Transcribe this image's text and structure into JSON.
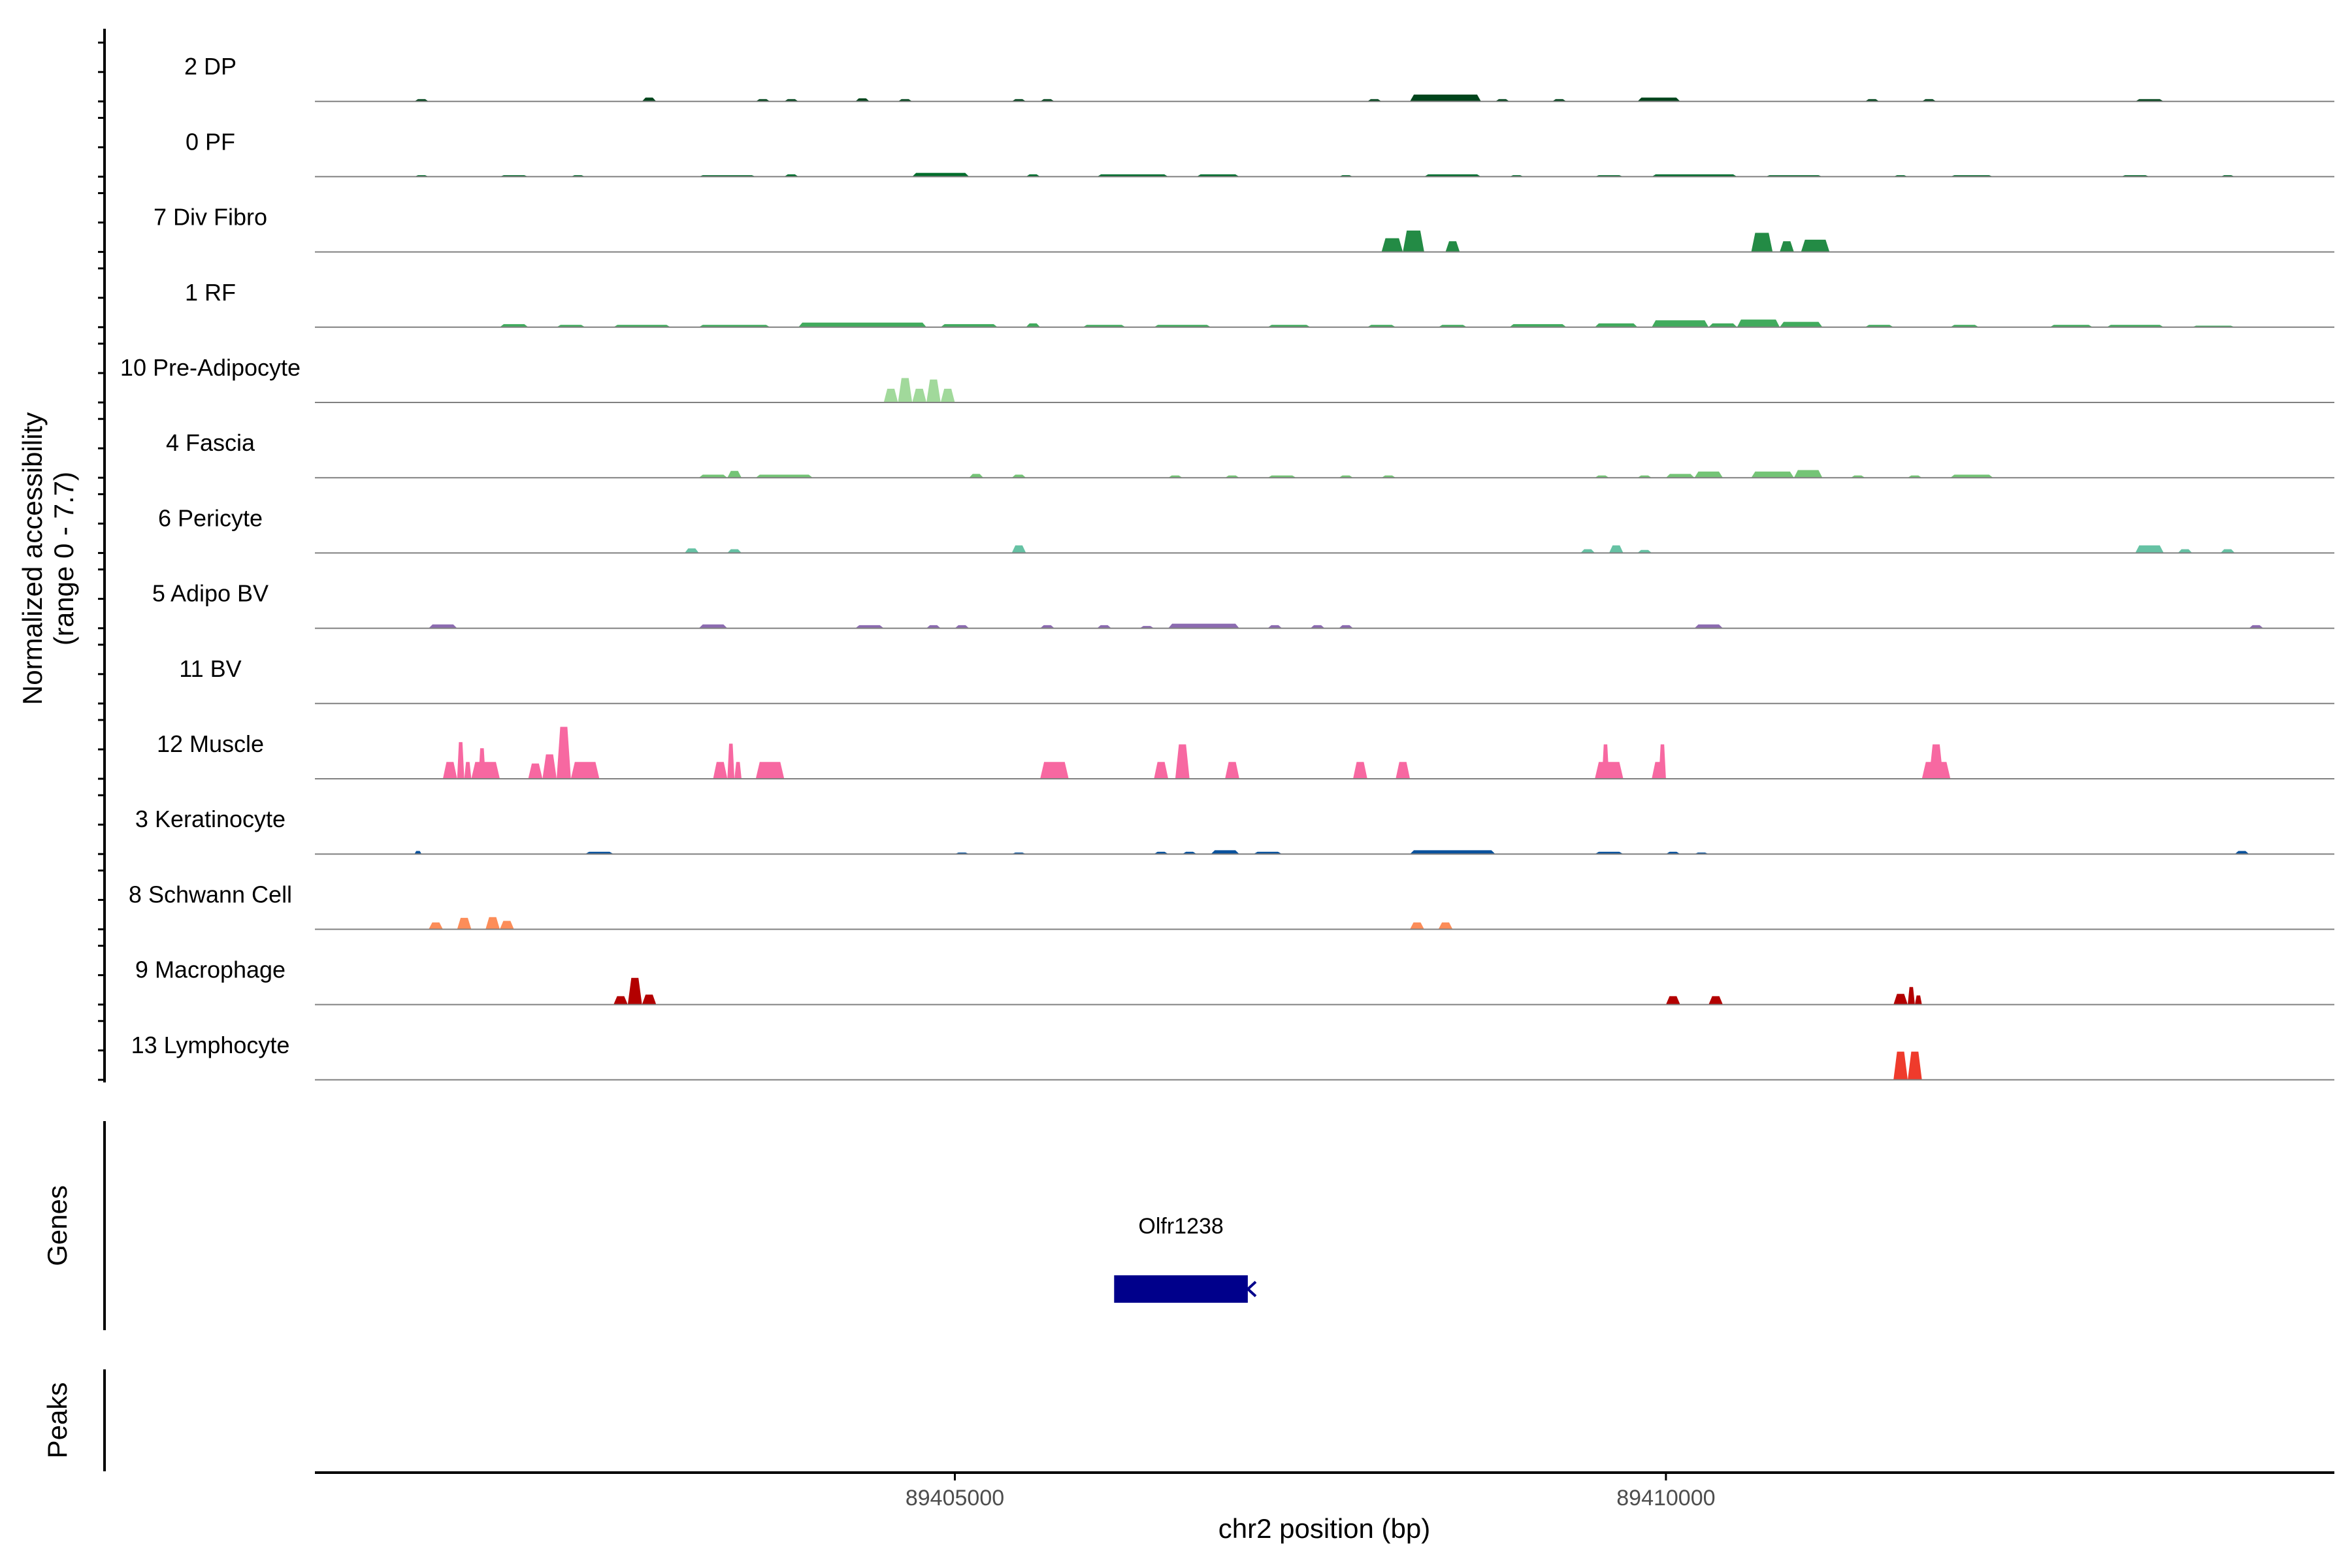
{
  "chart_data": {
    "type": "area",
    "title": "",
    "ylabel_line1": "Normalized accessibility",
    "ylabel_line2": "(range 0 - 7.7)",
    "y_range": [
      0,
      7.7
    ],
    "xlabel": "chr2 position (bp)",
    "xlim": [
      89400500,
      89414700
    ],
    "x_ticks": [
      {
        "value": 89405000,
        "label": "89405000"
      },
      {
        "value": 89410000,
        "label": "89410000"
      }
    ],
    "panels": {
      "genes_label": "Genes",
      "peaks_label": "Peaks"
    },
    "gene": {
      "name": "Olfr1238",
      "start": 89406120,
      "end": 89407060,
      "strand": "-",
      "color": "#00008b"
    },
    "tracks": [
      {
        "name": "2 DP",
        "color": "#00441b",
        "regions": [
          [
            89401200,
            89401300,
            0.3
          ],
          [
            89402800,
            89402900,
            0.5
          ],
          [
            89403600,
            89403700,
            0.3
          ],
          [
            89403800,
            89403900,
            0.3
          ],
          [
            89404300,
            89404400,
            0.4
          ],
          [
            89404600,
            89404700,
            0.3
          ],
          [
            89405400,
            89405500,
            0.3
          ],
          [
            89405600,
            89405700,
            0.3
          ],
          [
            89407900,
            89408000,
            0.3
          ],
          [
            89408200,
            89408700,
            0.9
          ],
          [
            89408800,
            89408900,
            0.3
          ],
          [
            89409200,
            89409300,
            0.3
          ],
          [
            89409800,
            89410100,
            0.5
          ],
          [
            89411400,
            89411500,
            0.3
          ],
          [
            89411800,
            89411900,
            0.3
          ],
          [
            89413300,
            89413500,
            0.3
          ]
        ]
      },
      {
        "name": "0 PF",
        "color": "#006d2c",
        "regions": [
          [
            89401200,
            89401300,
            0.2
          ],
          [
            89401800,
            89402000,
            0.2
          ],
          [
            89402300,
            89402400,
            0.2
          ],
          [
            89403200,
            89403600,
            0.2
          ],
          [
            89403800,
            89403900,
            0.3
          ],
          [
            89404700,
            89405100,
            0.5
          ],
          [
            89405500,
            89405600,
            0.3
          ],
          [
            89406000,
            89406500,
            0.3
          ],
          [
            89406700,
            89407000,
            0.3
          ],
          [
            89407700,
            89407800,
            0.2
          ],
          [
            89408300,
            89408700,
            0.3
          ],
          [
            89408900,
            89409000,
            0.2
          ],
          [
            89409500,
            89409700,
            0.2
          ],
          [
            89409900,
            89410500,
            0.3
          ],
          [
            89410700,
            89411100,
            0.2
          ],
          [
            89411600,
            89411700,
            0.2
          ],
          [
            89412000,
            89412300,
            0.2
          ],
          [
            89413200,
            89413400,
            0.2
          ],
          [
            89413900,
            89414000,
            0.2
          ]
        ]
      },
      {
        "name": "7 Div Fibro",
        "color": "#238b45",
        "regions": [
          [
            89408000,
            89408150,
            1.8
          ],
          [
            89408150,
            89408300,
            2.8
          ],
          [
            89408450,
            89408550,
            1.4
          ],
          [
            89410600,
            89410750,
            2.5
          ],
          [
            89410800,
            89410900,
            1.4
          ],
          [
            89410950,
            89411150,
            1.6
          ]
        ]
      },
      {
        "name": "1 RF",
        "color": "#41ab5d",
        "regions": [
          [
            89401800,
            89402000,
            0.4
          ],
          [
            89402200,
            89402400,
            0.3
          ],
          [
            89402600,
            89403000,
            0.3
          ],
          [
            89403200,
            89403700,
            0.3
          ],
          [
            89403900,
            89404800,
            0.6
          ],
          [
            89404900,
            89405300,
            0.4
          ],
          [
            89405500,
            89405600,
            0.5
          ],
          [
            89405900,
            89406200,
            0.3
          ],
          [
            89406400,
            89406800,
            0.3
          ],
          [
            89407200,
            89407500,
            0.3
          ],
          [
            89407900,
            89408100,
            0.3
          ],
          [
            89408400,
            89408600,
            0.3
          ],
          [
            89408900,
            89409300,
            0.4
          ],
          [
            89409500,
            89409800,
            0.5
          ],
          [
            89409900,
            89410300,
            0.9
          ],
          [
            89410300,
            89410500,
            0.5
          ],
          [
            89410500,
            89410800,
            1.0
          ],
          [
            89410800,
            89411100,
            0.7
          ],
          [
            89411400,
            89411600,
            0.3
          ],
          [
            89412000,
            89412200,
            0.3
          ],
          [
            89412700,
            89413000,
            0.3
          ],
          [
            89413100,
            89413500,
            0.3
          ],
          [
            89413700,
            89414000,
            0.2
          ]
        ]
      },
      {
        "name": "10 Pre-Adipocyte",
        "color": "#a1d99b",
        "regions": [
          [
            89404500,
            89404600,
            1.8
          ],
          [
            89404600,
            89404700,
            3.2
          ],
          [
            89404700,
            89404800,
            1.8
          ],
          [
            89404800,
            89404900,
            3.0
          ],
          [
            89404900,
            89405000,
            1.8
          ]
        ]
      },
      {
        "name": "4 Fascia",
        "color": "#74c476",
        "regions": [
          [
            89403200,
            89403400,
            0.4
          ],
          [
            89403400,
            89403500,
            0.9
          ],
          [
            89403600,
            89404000,
            0.4
          ],
          [
            89405100,
            89405200,
            0.5
          ],
          [
            89405400,
            89405500,
            0.4
          ],
          [
            89406500,
            89406600,
            0.3
          ],
          [
            89406900,
            89407000,
            0.3
          ],
          [
            89407200,
            89407400,
            0.3
          ],
          [
            89407700,
            89407800,
            0.3
          ],
          [
            89408000,
            89408100,
            0.3
          ],
          [
            89409500,
            89409600,
            0.3
          ],
          [
            89409800,
            89409900,
            0.3
          ],
          [
            89410000,
            89410200,
            0.5
          ],
          [
            89410200,
            89410400,
            0.8
          ],
          [
            89410600,
            89410900,
            0.8
          ],
          [
            89410900,
            89411100,
            1.0
          ],
          [
            89411300,
            89411400,
            0.3
          ],
          [
            89411700,
            89411800,
            0.3
          ],
          [
            89412000,
            89412300,
            0.4
          ]
        ]
      },
      {
        "name": "6 Pericyte",
        "color": "#66c2a4",
        "regions": [
          [
            89403100,
            89403200,
            0.6
          ],
          [
            89403400,
            89403500,
            0.5
          ],
          [
            89405400,
            89405500,
            1.0
          ],
          [
            89409400,
            89409500,
            0.5
          ],
          [
            89409600,
            89409700,
            1.0
          ],
          [
            89409800,
            89409900,
            0.4
          ],
          [
            89413300,
            89413500,
            1.0
          ],
          [
            89413600,
            89413700,
            0.5
          ],
          [
            89413900,
            89414000,
            0.5
          ]
        ]
      },
      {
        "name": "5 Adipo BV",
        "color": "#8c6bb1",
        "regions": [
          [
            89401300,
            89401500,
            0.5
          ],
          [
            89403200,
            89403400,
            0.5
          ],
          [
            89404300,
            89404500,
            0.4
          ],
          [
            89404800,
            89404900,
            0.4
          ],
          [
            89405000,
            89405100,
            0.4
          ],
          [
            89405600,
            89405700,
            0.4
          ],
          [
            89406000,
            89406100,
            0.4
          ],
          [
            89406300,
            89406400,
            0.3
          ],
          [
            89406500,
            89407000,
            0.6
          ],
          [
            89407200,
            89407300,
            0.4
          ],
          [
            89407500,
            89407600,
            0.4
          ],
          [
            89407700,
            89407800,
            0.4
          ],
          [
            89410200,
            89410400,
            0.5
          ],
          [
            89414100,
            89414200,
            0.4
          ]
        ]
      },
      {
        "name": "11 BV",
        "color": "#88419d",
        "regions": []
      },
      {
        "name": "12 Muscle",
        "color": "#f768a1",
        "regions": [
          [
            89401400,
            89401500,
            2.2
          ],
          [
            89401500,
            89401550,
            4.8
          ],
          [
            89401550,
            89401600,
            2.2
          ],
          [
            89401600,
            89401800,
            2.2
          ],
          [
            89401650,
            89401700,
            4.0
          ],
          [
            89402000,
            89402100,
            2.0
          ],
          [
            89402100,
            89402200,
            3.2
          ],
          [
            89402200,
            89402300,
            6.8
          ],
          [
            89402300,
            89402500,
            2.2
          ],
          [
            89403300,
            89403400,
            2.2
          ],
          [
            89403400,
            89403450,
            4.6
          ],
          [
            89403450,
            89403500,
            2.2
          ],
          [
            89403600,
            89403800,
            2.2
          ],
          [
            89405600,
            89405800,
            2.2
          ],
          [
            89406400,
            89406500,
            2.2
          ],
          [
            89406550,
            89406650,
            4.5
          ],
          [
            89406900,
            89407000,
            2.2
          ],
          [
            89407800,
            89407900,
            2.2
          ],
          [
            89408100,
            89408200,
            2.2
          ],
          [
            89409500,
            89409700,
            2.2
          ],
          [
            89409550,
            89409600,
            4.5
          ],
          [
            89409900,
            89410000,
            2.2
          ],
          [
            89409950,
            89410000,
            4.5
          ],
          [
            89411800,
            89412000,
            2.2
          ],
          [
            89411850,
            89411950,
            4.5
          ]
        ]
      },
      {
        "name": "3 Keratinocyte",
        "color": "#08519c",
        "regions": [
          [
            89401200,
            89401250,
            0.4
          ],
          [
            89402400,
            89402600,
            0.3
          ],
          [
            89405000,
            89405100,
            0.2
          ],
          [
            89405400,
            89405500,
            0.2
          ],
          [
            89406400,
            89406500,
            0.3
          ],
          [
            89406600,
            89406700,
            0.3
          ],
          [
            89406800,
            89407000,
            0.5
          ],
          [
            89407100,
            89407300,
            0.3
          ],
          [
            89408200,
            89408800,
            0.5
          ],
          [
            89409500,
            89409700,
            0.3
          ],
          [
            89410000,
            89410100,
            0.3
          ],
          [
            89410200,
            89410300,
            0.2
          ],
          [
            89414000,
            89414100,
            0.4
          ]
        ]
      },
      {
        "name": "8 Schwann Cell",
        "color": "#fc8d59",
        "regions": [
          [
            89401300,
            89401400,
            0.9
          ],
          [
            89401500,
            89401600,
            1.5
          ],
          [
            89401700,
            89401800,
            1.6
          ],
          [
            89401800,
            89401900,
            1.1
          ],
          [
            89408200,
            89408300,
            0.9
          ],
          [
            89408400,
            89408500,
            0.9
          ]
        ]
      },
      {
        "name": "9 Macrophage",
        "color": "#b30000",
        "regions": [
          [
            89402600,
            89402700,
            1.1
          ],
          [
            89402700,
            89402800,
            3.5
          ],
          [
            89402800,
            89402900,
            1.3
          ],
          [
            89410000,
            89410100,
            1.1
          ],
          [
            89410300,
            89410400,
            1.1
          ],
          [
            89411600,
            89411700,
            1.4
          ],
          [
            89411700,
            89411750,
            2.3
          ],
          [
            89411750,
            89411800,
            1.2
          ]
        ]
      },
      {
        "name": "13 Lymphocyte",
        "color": "#ef3b2c",
        "regions": [
          [
            89411600,
            89411700,
            3.7
          ],
          [
            89411700,
            89411800,
            3.7
          ]
        ]
      }
    ]
  }
}
